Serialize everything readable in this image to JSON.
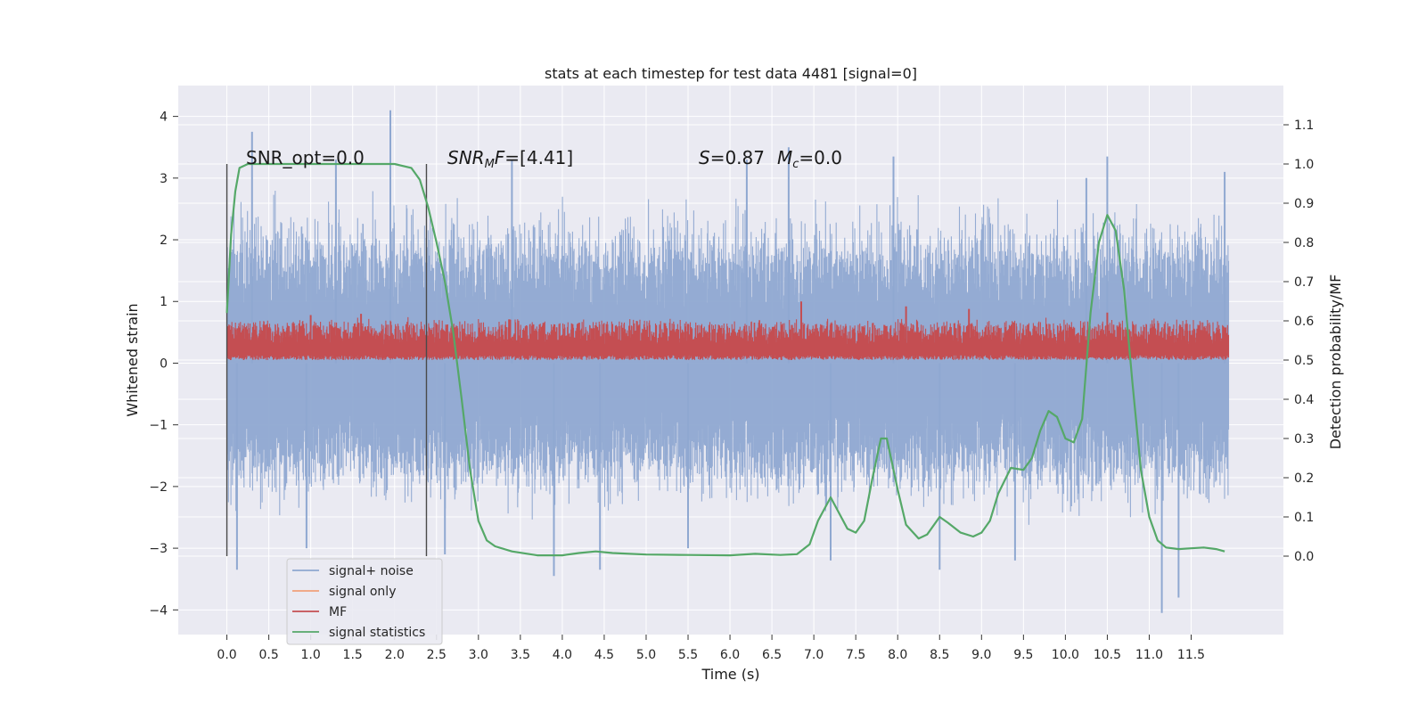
{
  "chart_data": {
    "type": "line",
    "title": "stats at each timestep for test data 4481 [signal=0]",
    "xlabel": "Time (s)",
    "ylabel": "Whitened strain",
    "y2label": "Detection probability/MF",
    "xlim": [
      -0.58,
      12.6
    ],
    "ylim": [
      -4.4,
      4.5
    ],
    "y2lim": [
      -0.2,
      1.2
    ],
    "x_ticks": [
      "0.0",
      "0.5",
      "1.0",
      "1.5",
      "2.0",
      "2.5",
      "3.0",
      "3.5",
      "4.0",
      "4.5",
      "5.0",
      "5.5",
      "6.0",
      "6.5",
      "7.0",
      "7.5",
      "8.0",
      "8.5",
      "9.0",
      "9.5",
      "10.0",
      "10.5",
      "11.0",
      "11.5"
    ],
    "y_ticks": [
      "4",
      "3",
      "2",
      "1",
      "0",
      "−1",
      "−2",
      "−3",
      "−4"
    ],
    "y2_ticks": [
      "1.1",
      "1.0",
      "0.9",
      "0.8",
      "0.7",
      "0.6",
      "0.5",
      "0.4",
      "0.3",
      "0.2",
      "0.1",
      "0.0"
    ],
    "grid": true,
    "annotations": {
      "snr_opt": "SNR_opt=0.0",
      "snr_mf_lead": "SNR",
      "snr_mf_sub": "M",
      "snr_mf_tail": "F",
      "snr_mf_value": "=[4.41]",
      "s_sym": "S",
      "s_value": "=0.87",
      "mc_sym": "M",
      "mc_sub": "c",
      "mc_value": "=0.0"
    },
    "vlines": [
      0.0,
      2.38
    ],
    "legend": {
      "position": "lower-left",
      "entries": [
        {
          "label": "signal+ noise",
          "color": "#8fa8d1"
        },
        {
          "label": "signal only",
          "color": "#f0a07a"
        },
        {
          "label": "MF",
          "color": "#c44e52"
        },
        {
          "label": "signal statistics",
          "color": "#55a868"
        }
      ]
    },
    "series": [
      {
        "name": "signal+ noise",
        "color": "#8fa8d1",
        "axis": "left",
        "x_range": [
          0.0,
          11.95
        ],
        "typical_band": [
          -1.25,
          1.3
        ],
        "x_spikes": [
          0.12,
          0.3,
          0.95,
          1.3,
          1.95,
          2.6,
          3.4,
          3.9,
          4.45,
          5.5,
          6.2,
          6.7,
          7.2,
          7.95,
          8.5,
          9.4,
          10.25,
          10.5,
          11.15,
          11.35,
          11.9
        ],
        "y_spikes": [
          -3.35,
          3.75,
          -3.0,
          3.3,
          4.1,
          -3.1,
          3.3,
          -3.45,
          -3.35,
          -3.0,
          3.3,
          3.5,
          -3.2,
          3.35,
          -3.35,
          -3.2,
          3.0,
          3.35,
          -4.05,
          -3.8,
          3.1
        ]
      },
      {
        "name": "MF",
        "color": "#c44e52",
        "axis": "left",
        "x_range": [
          0.0,
          11.95
        ],
        "band": [
          0.05,
          0.65
        ],
        "x_peaks": [
          1.0,
          1.6,
          6.85,
          8.1,
          8.85,
          10.5
        ],
        "y_peaks": [
          0.78,
          0.8,
          1.0,
          0.92,
          0.88,
          0.82
        ]
      },
      {
        "name": "signal statistics",
        "color": "#55a868",
        "axis": "right",
        "x": [
          0.0,
          0.05,
          0.1,
          0.15,
          0.25,
          0.5,
          1.0,
          1.5,
          2.0,
          2.2,
          2.3,
          2.4,
          2.5,
          2.6,
          2.7,
          2.8,
          2.9,
          3.0,
          3.1,
          3.2,
          3.4,
          3.7,
          4.0,
          4.2,
          4.4,
          4.6,
          5.0,
          5.5,
          6.0,
          6.3,
          6.6,
          6.8,
          6.95,
          7.05,
          7.2,
          7.3,
          7.4,
          7.5,
          7.6,
          7.7,
          7.8,
          7.87,
          8.0,
          8.1,
          8.25,
          8.35,
          8.5,
          8.6,
          8.75,
          8.9,
          9.0,
          9.1,
          9.2,
          9.35,
          9.5,
          9.6,
          9.7,
          9.8,
          9.9,
          10.0,
          10.1,
          10.2,
          10.3,
          10.4,
          10.5,
          10.6,
          10.7,
          10.8,
          10.9,
          11.0,
          11.1,
          11.2,
          11.35,
          11.5,
          11.65,
          11.8,
          11.9
        ],
        "y": [
          0.62,
          0.82,
          0.93,
          0.99,
          1.0,
          1.0,
          1.0,
          1.0,
          1.0,
          0.99,
          0.96,
          0.89,
          0.8,
          0.7,
          0.57,
          0.4,
          0.22,
          0.09,
          0.04,
          0.025,
          0.012,
          0.002,
          0.002,
          0.008,
          0.012,
          0.008,
          0.004,
          0.003,
          0.002,
          0.006,
          0.003,
          0.005,
          0.03,
          0.09,
          0.15,
          0.11,
          0.07,
          0.06,
          0.09,
          0.2,
          0.3,
          0.3,
          0.17,
          0.08,
          0.045,
          0.055,
          0.1,
          0.085,
          0.06,
          0.05,
          0.06,
          0.09,
          0.16,
          0.225,
          0.22,
          0.25,
          0.32,
          0.37,
          0.355,
          0.3,
          0.29,
          0.35,
          0.62,
          0.8,
          0.87,
          0.83,
          0.68,
          0.44,
          0.22,
          0.1,
          0.04,
          0.022,
          0.018,
          0.02,
          0.022,
          0.018,
          0.012
        ]
      }
    ]
  }
}
